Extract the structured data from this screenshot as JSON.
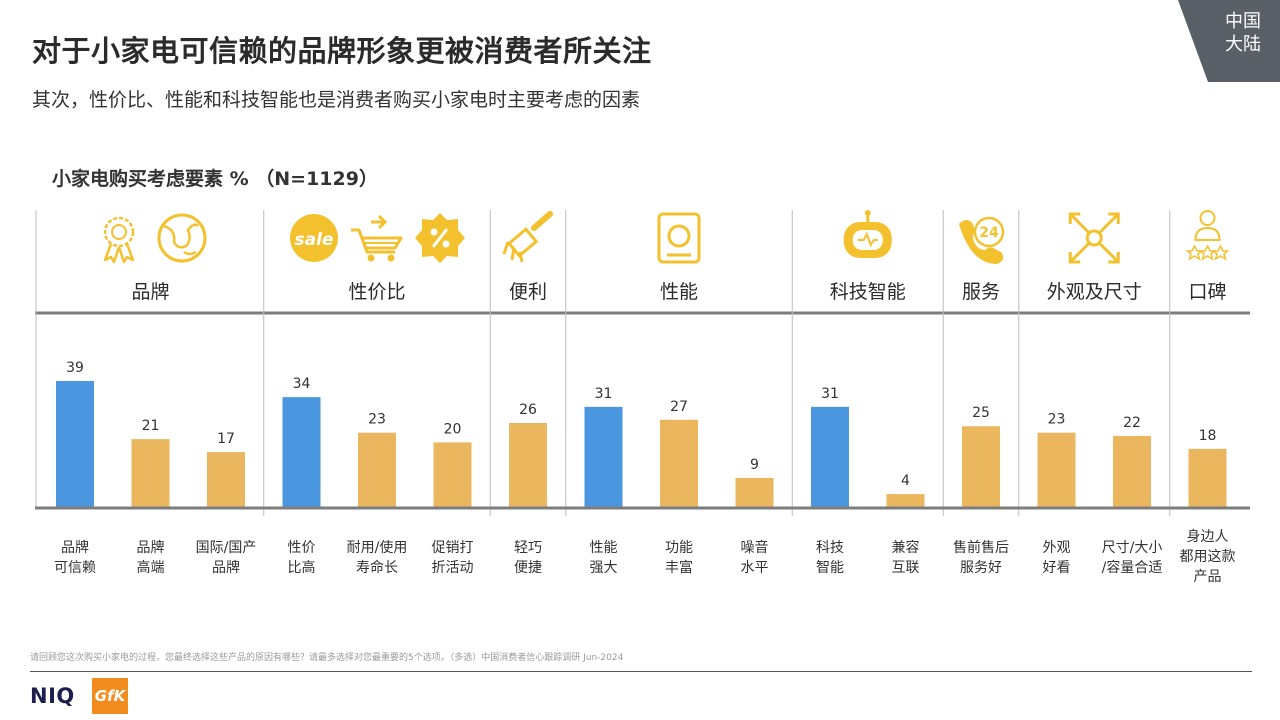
{
  "header": {
    "title": "对于小家电可信赖的品牌形象更被消费者所关注",
    "subtitle": "其次，性价比、性能和科技智能也是消费者购买小家电时主要考虑的因素",
    "region": "中国\n大陆"
  },
  "chart_label": "小家电购买考虑要素 % （N=1129）",
  "colors": {
    "highlight": "#4A97E0",
    "normal": "#EAB65E",
    "icon": "#F3C12E",
    "axis": "#7d7d7d",
    "region_tag": "#5a6068"
  },
  "chart_data": {
    "type": "bar",
    "title": "小家电购买考虑要素 % （N=1129）",
    "ylim": [
      0,
      45
    ],
    "groups": [
      {
        "name": "品牌",
        "icons": [
          "award-ribbon-icon",
          "globe-icon"
        ],
        "items": [
          0,
          1,
          2
        ]
      },
      {
        "name": "性价比",
        "icons": [
          "sale-tag-icon",
          "shopping-cart-icon",
          "discount-badge-icon"
        ],
        "items": [
          3,
          4,
          5
        ]
      },
      {
        "name": "便利",
        "icons": [
          "cleaning-brush-icon"
        ],
        "items": [
          6
        ]
      },
      {
        "name": "性能",
        "icons": [
          "tablet-device-icon"
        ],
        "items": [
          7,
          8,
          9
        ]
      },
      {
        "name": "科技智能",
        "icons": [
          "robot-icon"
        ],
        "items": [
          10,
          11
        ]
      },
      {
        "name": "服务",
        "icons": [
          "24h-phone-icon"
        ],
        "items": [
          12
        ]
      },
      {
        "name": "外观及尺寸",
        "icons": [
          "expand-arrows-icon"
        ],
        "items": [
          13,
          14
        ]
      },
      {
        "name": "口碑",
        "icons": [
          "user-rating-icon"
        ],
        "items": [
          15
        ]
      }
    ],
    "categories": [
      "品牌\n可信赖",
      "品牌\n高端",
      "国际/国产\n品牌",
      "性价\n比高",
      "耐用/使用\n寿命长",
      "促销打\n折活动",
      "轻巧\n便捷",
      "性能\n强大",
      "功能\n丰富",
      "噪音\n水平",
      "科技\n智能",
      "兼容\n互联",
      "售前售后\n服务好",
      "外观\n好看",
      "尺寸/大小\n/容量合适",
      "身边人\n都用这款\n产品"
    ],
    "values": [
      39,
      21,
      17,
      34,
      23,
      20,
      26,
      31,
      27,
      9,
      31,
      4,
      25,
      23,
      22,
      18
    ],
    "highlighted": [
      true,
      false,
      false,
      true,
      false,
      false,
      false,
      true,
      false,
      false,
      true,
      false,
      false,
      false,
      false,
      false
    ]
  },
  "footnote": "请回顾您这次购买小家电的过程，您最终选择这些产品的原因有哪些？请最多选择对您最重要的5个选项。（多选）中国消费者信心跟踪调研 Jun-2024",
  "logos": {
    "niq": "NIQ",
    "gfk": "GfK"
  }
}
